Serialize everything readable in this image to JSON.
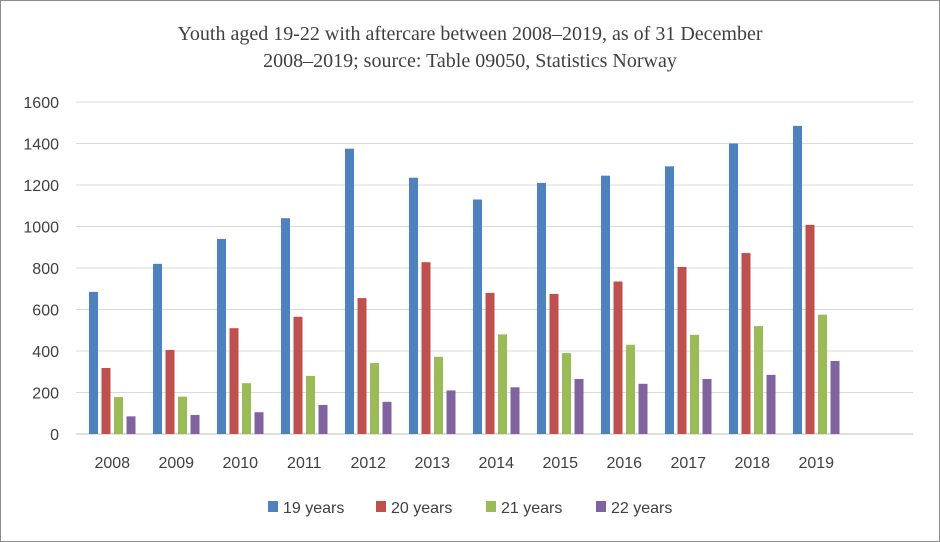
{
  "chart_data": {
    "type": "bar",
    "title_line1": "Youth aged 19-22 with aftercare between 2008–2019,  as of 31 December",
    "title_line2": "2008–2019;  source: Table 09050,  Statistics Norway",
    "xlabel": "",
    "ylabel": "",
    "ylim": [
      0,
      1600
    ],
    "yticks": [
      0,
      200,
      400,
      600,
      800,
      1000,
      1200,
      1400,
      1600
    ],
    "grid": true,
    "legend_position": "bottom",
    "categories": [
      "2008",
      "2009",
      "2010",
      "2011",
      "2012",
      "2013",
      "2014",
      "2015",
      "2016",
      "2017",
      "2018",
      "2019"
    ],
    "series": [
      {
        "name": "19 years",
        "color": "#4f81bd",
        "values": [
          685,
          820,
          940,
          1040,
          1375,
          1235,
          1130,
          1210,
          1245,
          1290,
          1400,
          1485
        ]
      },
      {
        "name": "20 years",
        "color": "#c0504d",
        "values": [
          318,
          405,
          510,
          565,
          655,
          828,
          680,
          675,
          735,
          805,
          872,
          1008
        ]
      },
      {
        "name": "21 years",
        "color": "#9bbb59",
        "values": [
          178,
          180,
          245,
          280,
          342,
          372,
          480,
          390,
          430,
          478,
          520,
          575
        ]
      },
      {
        "name": "22 years",
        "color": "#8064a2",
        "values": [
          85,
          92,
          105,
          140,
          155,
          210,
          225,
          265,
          242,
          265,
          285,
          352
        ]
      }
    ]
  }
}
